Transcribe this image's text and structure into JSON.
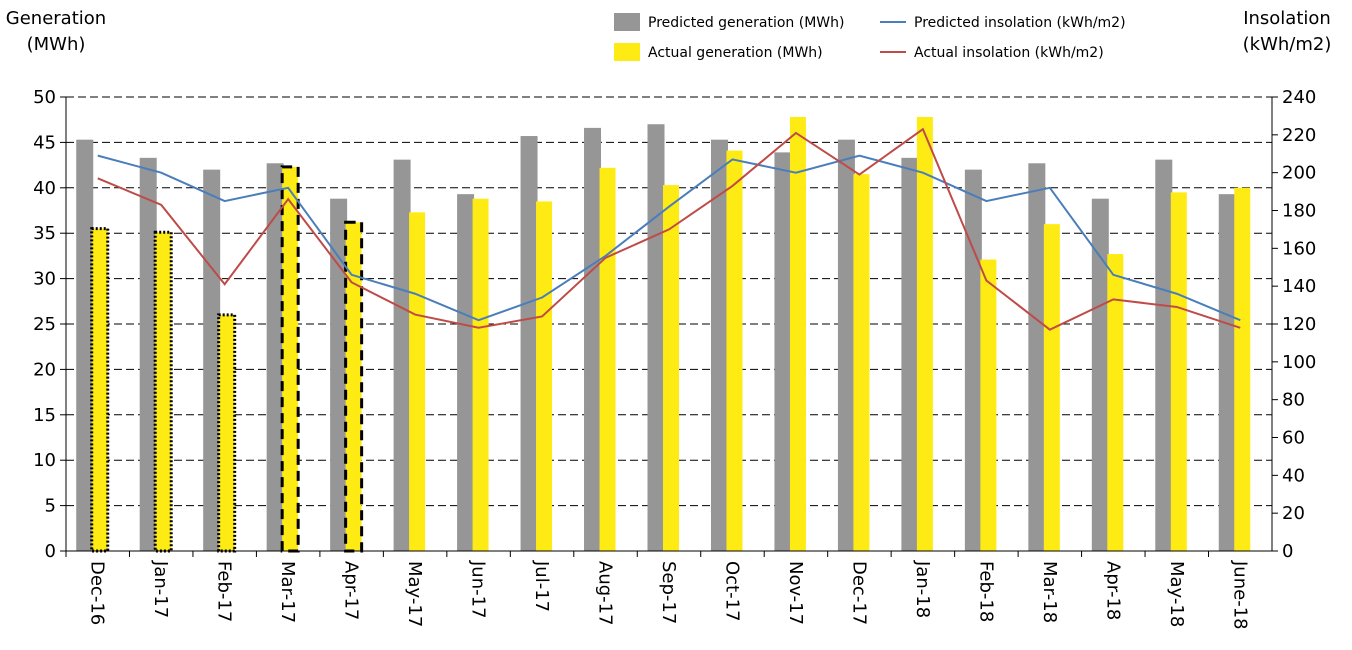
{
  "chart_data": {
    "type": "bar",
    "y_label": "Generation (MWh)",
    "y2_label": "Insolation (kWh/m2)",
    "categories": [
      "Dec-16",
      "Jan-17",
      "Feb-17",
      "Mar-17",
      "Apr-17",
      "May-17",
      "Jun-17",
      "Jul-17",
      "Aug-17",
      "Sep-17",
      "Oct-17",
      "Nov-17",
      "Dec-17",
      "Jan-18",
      "Feb-18",
      "Mar-18",
      "Apr-18",
      "May-18",
      "June-18"
    ],
    "series": [
      {
        "name": "Predicted generation (MWh)",
        "type": "bar",
        "color": "#969696",
        "values": [
          45.3,
          43.3,
          42,
          42.7,
          38.8,
          43.1,
          39.3,
          45.7,
          46.6,
          47,
          45.3,
          43.9,
          45.3,
          43.3,
          42,
          42.7,
          38.8,
          43.1,
          39.3
        ]
      },
      {
        "name": "Actual generation (MWh)",
        "type": "bar",
        "color": "#ffeb14",
        "outline_styles": [
          "dotted",
          "dotted",
          "dotted",
          "dashed",
          "dashed",
          null,
          null,
          null,
          null,
          null,
          null,
          null,
          null,
          null,
          null,
          null,
          null,
          null,
          null
        ],
        "values": [
          35.5,
          35.1,
          26,
          42.3,
          36.2,
          37.3,
          38.8,
          38.5,
          42.2,
          40.3,
          44.1,
          47.8,
          41.5,
          47.8,
          32.1,
          36,
          32.7,
          39.5,
          40
        ]
      },
      {
        "name": "Predicted insolation (kWh/m2)",
        "type": "line",
        "axis": "y2",
        "color": "#4a7ebb",
        "values": [
          209,
          200,
          185,
          192,
          146,
          136,
          122,
          134,
          156,
          182,
          207,
          200,
          209,
          200,
          185,
          192,
          146,
          136,
          122
        ]
      },
      {
        "name": "Actual insolation (kWh/m2)",
        "type": "line",
        "axis": "y2",
        "color": "#be4b48",
        "values": [
          197,
          183,
          141,
          186,
          142,
          125,
          118,
          124,
          155,
          170,
          193,
          221,
          199,
          223,
          143,
          117,
          133,
          129,
          118
        ]
      }
    ],
    "ylim": [
      0,
      50
    ],
    "yticks": [
      0,
      5,
      10,
      15,
      20,
      25,
      30,
      35,
      40,
      45,
      50
    ],
    "y2lim": [
      0,
      240
    ],
    "y2ticks": [
      0,
      20,
      40,
      60,
      80,
      100,
      120,
      140,
      160,
      180,
      200,
      220,
      240
    ],
    "grid": true
  }
}
